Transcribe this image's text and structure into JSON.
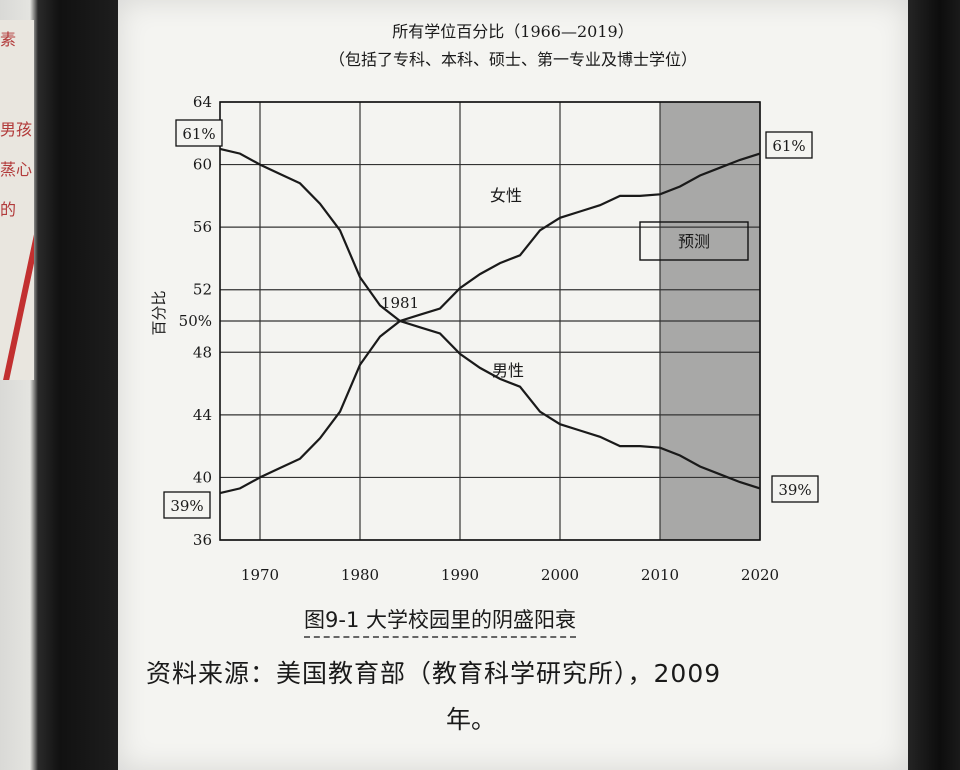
{
  "chart_data": {
    "type": "line",
    "title": "所有学位百分比（1966—2019）",
    "subtitle": "（包括了专科、本科、硕士、第一专业及博士学位）",
    "ylabel": "百分比",
    "xlabel": "",
    "xlim": [
      1966,
      2020
    ],
    "ylim": [
      36,
      64
    ],
    "x_ticks": [
      "1970",
      "1980",
      "1990",
      "2000",
      "2010",
      "2020"
    ],
    "y_ticks": [
      "36",
      "40",
      "44",
      "48",
      "50%",
      "52",
      "56",
      "60",
      "64"
    ],
    "grid": true,
    "shaded_region": {
      "from": 2010,
      "to": 2020,
      "label": "预测"
    },
    "series": [
      {
        "name": "女性",
        "x": [
          1966,
          1968,
          1970,
          1972,
          1974,
          1976,
          1978,
          1980,
          1982,
          1984,
          1986,
          1988,
          1990,
          1992,
          1994,
          1996,
          1998,
          2000,
          2002,
          2004,
          2006,
          2008,
          2010,
          2012,
          2014,
          2016,
          2018,
          2020
        ],
        "y": [
          39.0,
          39.3,
          40.0,
          40.6,
          41.2,
          42.5,
          44.2,
          47.2,
          49.0,
          50.0,
          50.4,
          50.8,
          52.1,
          53.0,
          53.7,
          54.2,
          55.8,
          56.6,
          57.0,
          57.4,
          58.0,
          58.0,
          58.1,
          58.6,
          59.3,
          59.8,
          60.3,
          60.7
        ]
      },
      {
        "name": "男性",
        "x": [
          1966,
          1968,
          1970,
          1972,
          1974,
          1976,
          1978,
          1980,
          1982,
          1984,
          1986,
          1988,
          1990,
          1992,
          1994,
          1996,
          1998,
          2000,
          2002,
          2004,
          2006,
          2008,
          2010,
          2012,
          2014,
          2016,
          2018,
          2020
        ],
        "y": [
          61.0,
          60.7,
          60.0,
          59.4,
          58.8,
          57.5,
          55.8,
          52.8,
          51.0,
          50.0,
          49.6,
          49.2,
          47.9,
          47.0,
          46.3,
          45.8,
          44.2,
          43.4,
          43.0,
          42.6,
          42.0,
          42.0,
          41.9,
          41.4,
          40.7,
          40.2,
          39.7,
          39.3
        ]
      }
    ],
    "annotations": [
      "1981",
      "女性",
      "男性",
      "预测",
      "61%",
      "39%",
      "61%",
      "39%"
    ]
  },
  "figure_caption": "图9-1 大学校园里的阴盛阳衰",
  "source_line1": "资料来源：美国教育部（教育科学研究所），2009",
  "source_line2": "年。",
  "left_page_text": [
    "素",
    "男孩",
    "蒸心",
    "的"
  ],
  "colors": {
    "line": "#1a1a1a",
    "shade": "#9a9a9a",
    "paper": "#f4f4f1"
  }
}
